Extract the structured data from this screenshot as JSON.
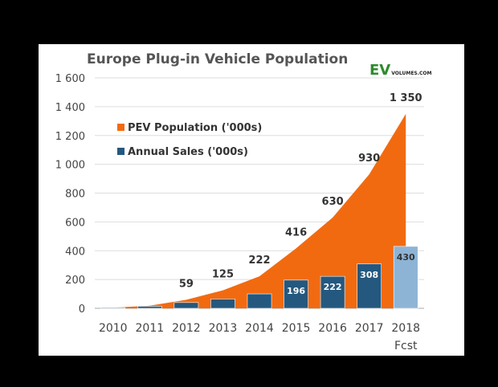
{
  "chart_data": {
    "type": "bar",
    "title": "Europe Plug-in Vehicle Population",
    "categories": [
      "2010",
      "2011",
      "2012",
      "2013",
      "2014",
      "2015",
      "2016",
      "2017",
      "2018"
    ],
    "forecast_label": "Fcst",
    "ylim": [
      0,
      1600
    ],
    "yticks": [
      0,
      200,
      400,
      600,
      800,
      1000,
      1200,
      1400,
      1600
    ],
    "ytick_labels": [
      "0",
      "200",
      "400",
      "600",
      "800",
      "1 000",
      "1 200",
      "1 400",
      "1 600"
    ],
    "series": [
      {
        "name": "PEV Population ('000s)",
        "kind": "area",
        "color": "#F26A10",
        "values": [
          5,
          18,
          59,
          125,
          222,
          416,
          630,
          930,
          1350
        ],
        "labels": [
          "",
          "",
          "59",
          "125",
          "222",
          "416",
          "630",
          "930",
          "1 350"
        ]
      },
      {
        "name": "Annual Sales ('000s)",
        "kind": "bar",
        "color": "#24587F",
        "forecast_color": "#8DB4D5",
        "values": [
          5,
          14,
          40,
          65,
          100,
          196,
          222,
          308,
          430
        ],
        "labels": [
          "",
          "",
          "",
          "",
          "",
          "196",
          "222",
          "308",
          "430"
        ]
      }
    ],
    "grid": true,
    "legend_position": "top-left"
  },
  "logo": {
    "ev": "EV",
    "rest": "VOLUMES.COM",
    "ev_color": "#2E8B2E"
  }
}
